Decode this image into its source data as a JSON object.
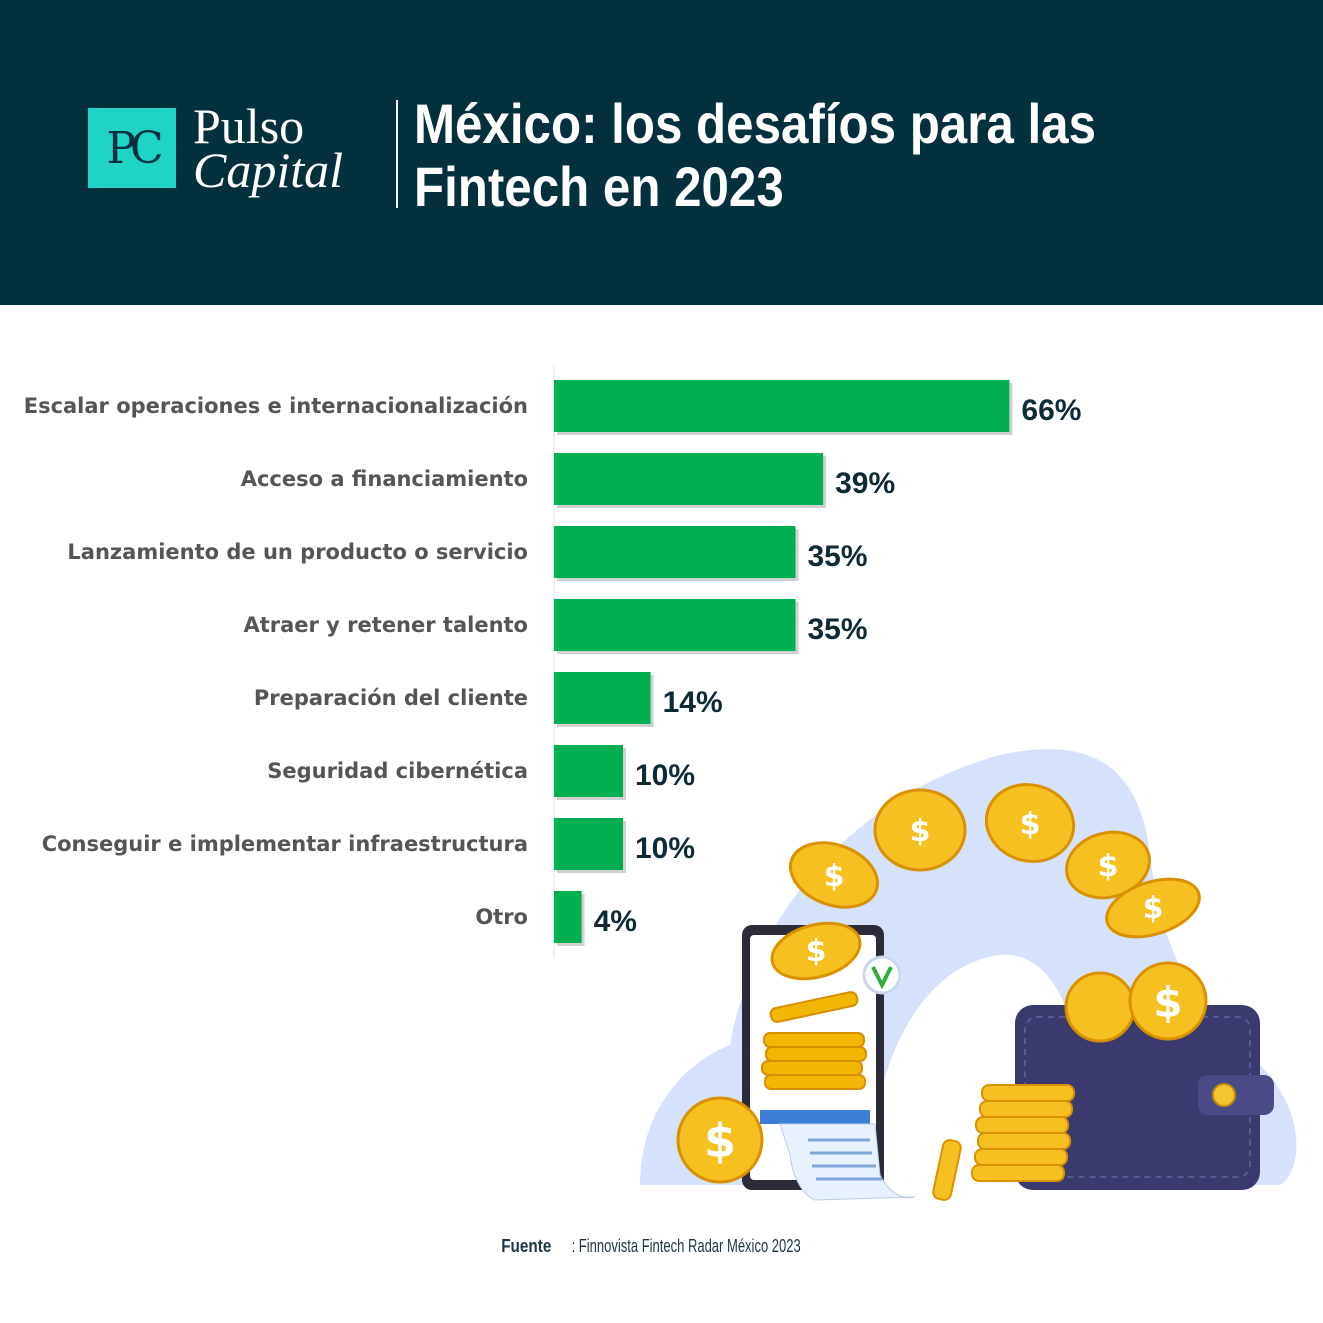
{
  "header": {
    "logo_mark": "PC",
    "brand_line1": "Pulso",
    "brand_line2": "Capital",
    "title_line1": "México: los desafíos para las",
    "title_line2": "Fintech en 2023"
  },
  "chart_data": {
    "type": "bar",
    "orientation": "horizontal",
    "categories": [
      "Escalar operaciones e internacionalización",
      "Acceso a financiamiento",
      "Lanzamiento de un producto o servicio",
      "Atraer y retener talento",
      "Preparación del cliente",
      "Seguridad cibernética",
      "Conseguir e implementar infraestructura",
      "Otro"
    ],
    "values": [
      66,
      39,
      35,
      35,
      14,
      10,
      10,
      4
    ],
    "value_labels": [
      "66%",
      "39%",
      "35%",
      "35%",
      "14%",
      "10%",
      "10%",
      "4%"
    ],
    "unit": "%",
    "xlim": [
      0,
      100
    ],
    "grid": false,
    "legend": "none",
    "bar_color": "#00b050"
  },
  "source": {
    "label": "Fuente",
    "text": ": Finnovista Fintech Radar México 2023"
  },
  "colors": {
    "header_bg": "#02303d",
    "logo_bg": "#1fd3c5",
    "bar": "#00b050",
    "label_text": "#555555",
    "value_text": "#0e2a36"
  },
  "illustration": {
    "icon": "smartphone-wallet-coins-icon"
  }
}
